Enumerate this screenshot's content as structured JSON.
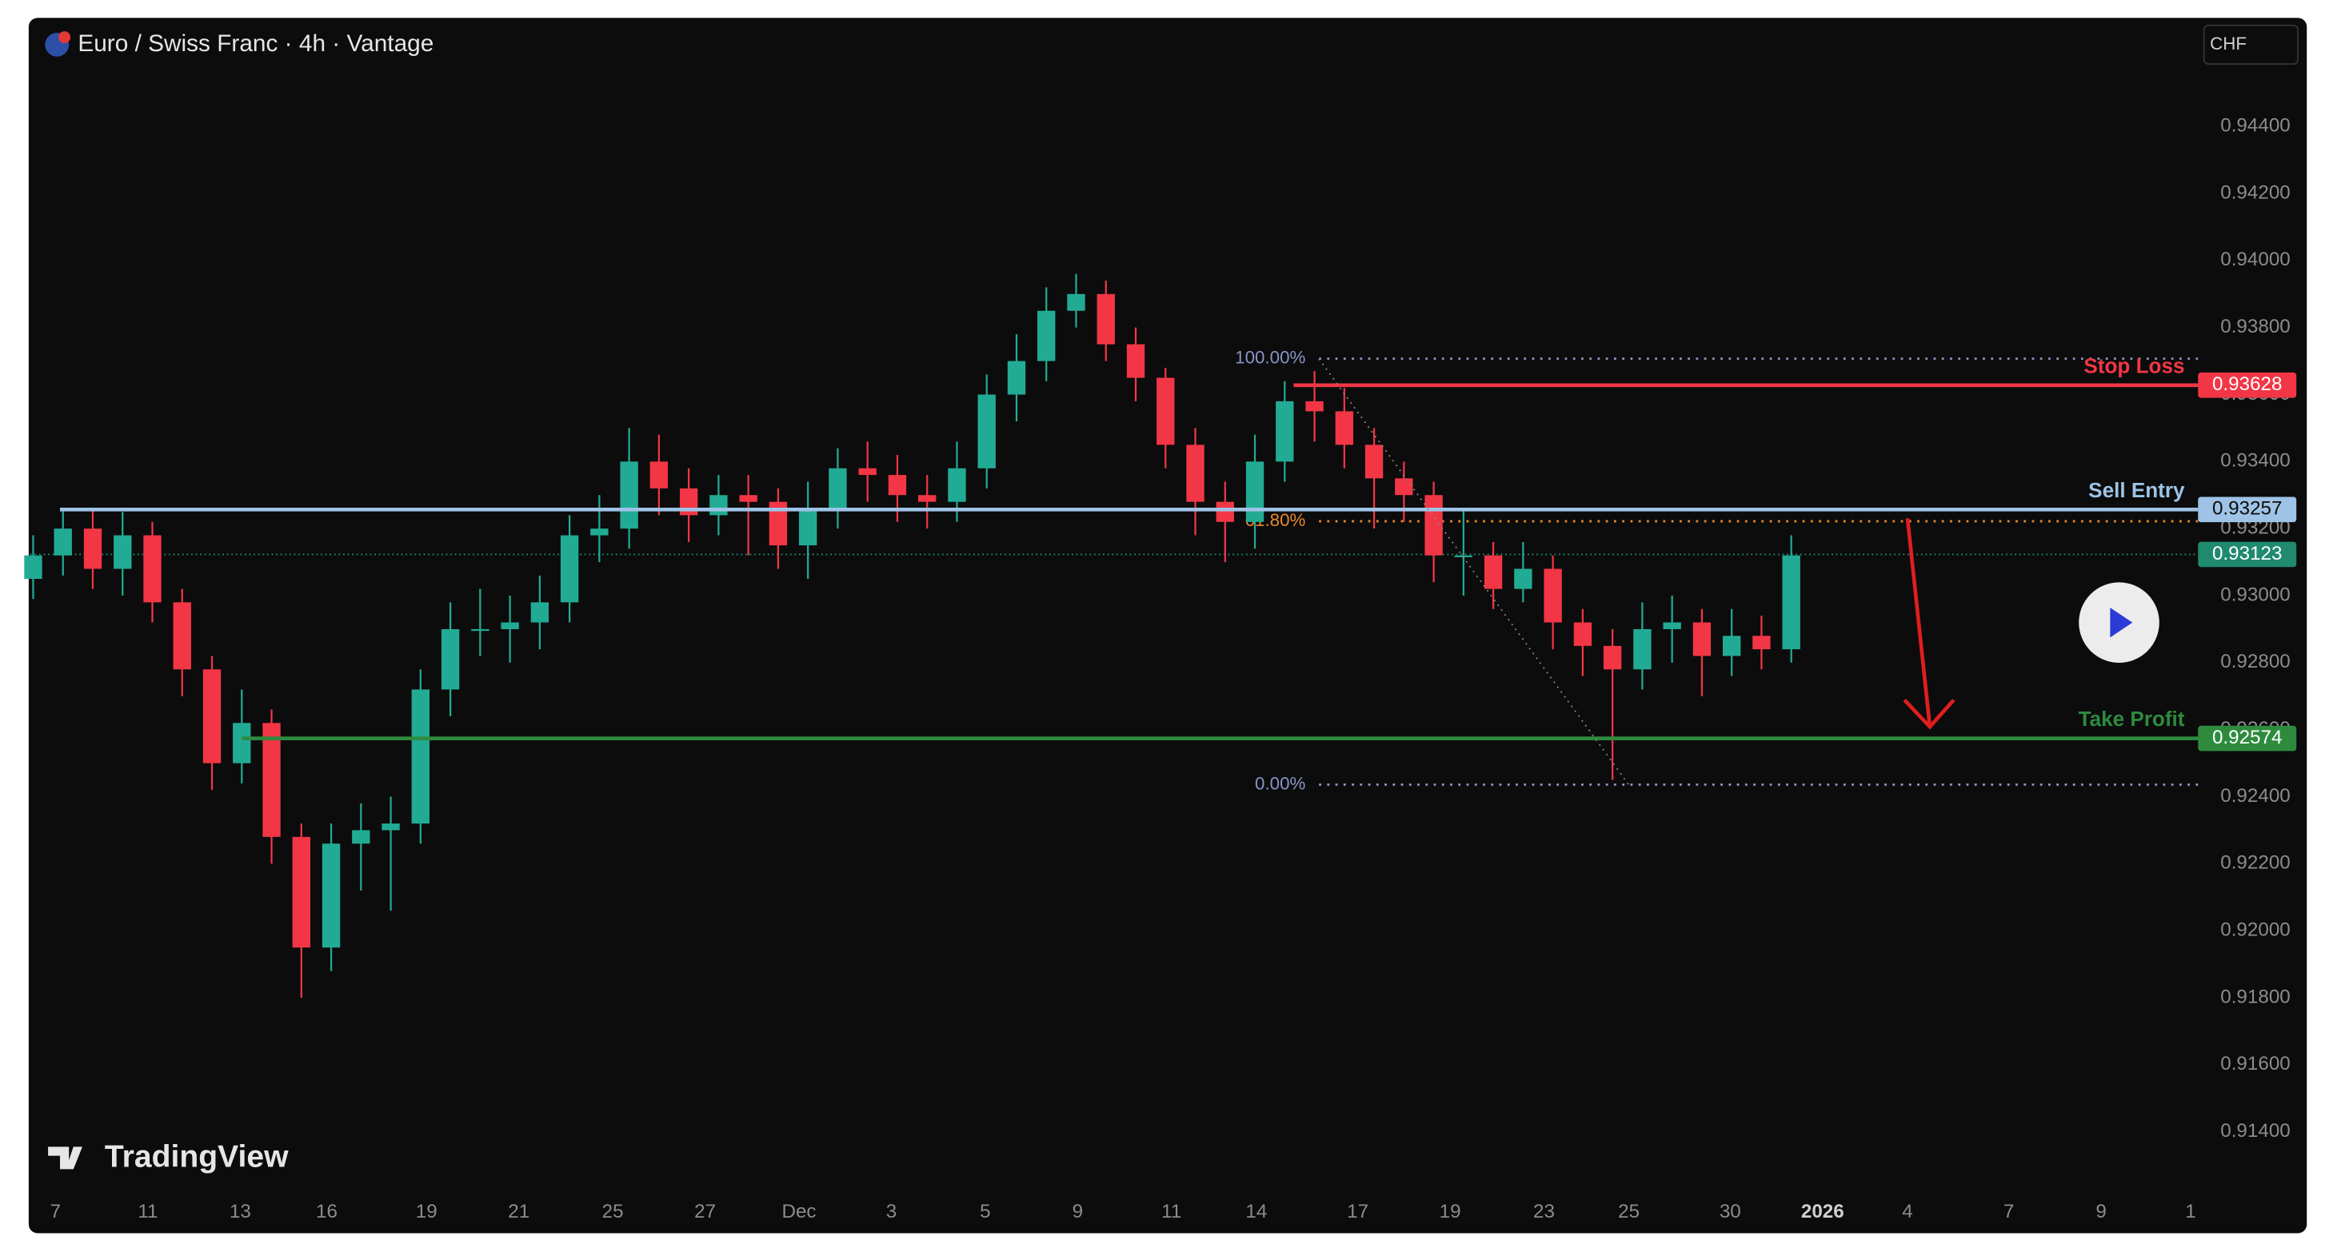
{
  "chart_data": {
    "type": "candlestick",
    "title": "Euro / Swiss Franc · 4h · Vantage",
    "currency": "CHF",
    "brand": "TradingView",
    "up_color": "#22ab94",
    "down_color": "#f23645",
    "open": [
      0.9305,
      0.9312,
      0.932,
      0.9308,
      0.9318,
      0.9298,
      0.9278,
      0.925,
      0.9262,
      0.9228,
      0.9195,
      0.9226,
      0.923,
      0.9232,
      0.9272,
      0.929,
      0.929,
      0.9292,
      0.9298,
      0.9318,
      0.932,
      0.934,
      0.9332,
      0.9324,
      0.933,
      0.9328,
      0.9315,
      0.9326,
      0.9338,
      0.9336,
      0.933,
      0.9328,
      0.9338,
      0.936,
      0.937,
      0.9385,
      0.939,
      0.9375,
      0.9365,
      0.9345,
      0.9328,
      0.9322,
      0.934,
      0.9358,
      0.9355,
      0.9345,
      0.9335,
      0.933,
      0.9312,
      0.9312,
      0.9302,
      0.9308,
      0.9292,
      0.9285,
      0.9278,
      0.929,
      0.9292,
      0.9282,
      0.9288,
      0.9284
    ],
    "high": [
      0.9318,
      0.9326,
      0.9326,
      0.9325,
      0.9322,
      0.9302,
      0.9282,
      0.9272,
      0.9266,
      0.9232,
      0.9232,
      0.9238,
      0.924,
      0.9278,
      0.9298,
      0.9302,
      0.93,
      0.9306,
      0.9324,
      0.933,
      0.935,
      0.9348,
      0.9338,
      0.9336,
      0.9336,
      0.9332,
      0.9334,
      0.9344,
      0.9346,
      0.9342,
      0.9336,
      0.9346,
      0.9366,
      0.9378,
      0.9392,
      0.9396,
      0.9394,
      0.938,
      0.9368,
      0.935,
      0.9334,
      0.9348,
      0.9364,
      0.9367,
      0.9362,
      0.935,
      0.934,
      0.9334,
      0.9326,
      0.9316,
      0.9316,
      0.9312,
      0.9296,
      0.929,
      0.9298,
      0.93,
      0.9296,
      0.9296,
      0.9294,
      0.9318
    ],
    "low": [
      0.9299,
      0.9306,
      0.9302,
      0.93,
      0.9292,
      0.927,
      0.9242,
      0.9244,
      0.922,
      0.918,
      0.9188,
      0.9212,
      0.9206,
      0.9226,
      0.9264,
      0.9282,
      0.928,
      0.9284,
      0.9292,
      0.931,
      0.9314,
      0.9324,
      0.9316,
      0.9318,
      0.9312,
      0.9308,
      0.9305,
      0.932,
      0.9328,
      0.9322,
      0.932,
      0.9322,
      0.9332,
      0.9352,
      0.9364,
      0.938,
      0.937,
      0.9358,
      0.9338,
      0.9318,
      0.931,
      0.9314,
      0.9334,
      0.9346,
      0.9338,
      0.932,
      0.9322,
      0.9304,
      0.93,
      0.9296,
      0.9298,
      0.9284,
      0.9276,
      0.9245,
      0.9272,
      0.928,
      0.927,
      0.9276,
      0.9278,
      0.928
    ],
    "close": [
      0.9312,
      0.932,
      0.9308,
      0.9318,
      0.9298,
      0.9278,
      0.925,
      0.9262,
      0.9228,
      0.9195,
      0.9226,
      0.923,
      0.9232,
      0.9272,
      0.929,
      0.929,
      0.9292,
      0.9298,
      0.9318,
      0.932,
      0.934,
      0.9332,
      0.9324,
      0.933,
      0.9328,
      0.9315,
      0.9326,
      0.9338,
      0.9336,
      0.933,
      0.9328,
      0.9338,
      0.936,
      0.937,
      0.9385,
      0.939,
      0.9375,
      0.9365,
      0.9345,
      0.9328,
      0.9322,
      0.934,
      0.9358,
      0.9355,
      0.9345,
      0.9335,
      0.933,
      0.9312,
      0.9312,
      0.9302,
      0.9308,
      0.9292,
      0.9285,
      0.9278,
      0.929,
      0.9292,
      0.9282,
      0.9288,
      0.9284,
      0.9312
    ],
    "xlim": [
      -0.1,
      72.65
    ],
    "xticks": [
      {
        "value": 0.75,
        "label": "7"
      },
      {
        "value": 3.85,
        "label": "11"
      },
      {
        "value": 6.95,
        "label": "13"
      },
      {
        "value": 9.85,
        "label": "16"
      },
      {
        "value": 13.2,
        "label": "19"
      },
      {
        "value": 16.3,
        "label": "21"
      },
      {
        "value": 19.45,
        "label": "25"
      },
      {
        "value": 22.55,
        "label": "27"
      },
      {
        "value": 25.7,
        "label": "Dec"
      },
      {
        "value": 28.8,
        "label": "3"
      },
      {
        "value": 31.95,
        "label": "5"
      },
      {
        "value": 35.05,
        "label": "9"
      },
      {
        "value": 38.2,
        "label": "11"
      },
      {
        "value": 41.05,
        "label": "14"
      },
      {
        "value": 44.45,
        "label": "17"
      },
      {
        "value": 47.55,
        "label": "19"
      },
      {
        "value": 50.7,
        "label": "23"
      },
      {
        "value": 53.55,
        "label": "25"
      },
      {
        "value": 56.95,
        "label": "30"
      },
      {
        "value": 60.05,
        "label": "2026"
      },
      {
        "value": 62.9,
        "label": "4"
      },
      {
        "value": 66.3,
        "label": "7"
      },
      {
        "value": 69.4,
        "label": "9"
      },
      {
        "value": 72.4,
        "label": "1"
      }
    ],
    "ylim": [
      0.91222,
      0.94724
    ],
    "yticks": [
      {
        "value": 0.914,
        "label": "0.91400"
      },
      {
        "value": 0.916,
        "label": "0.91600"
      },
      {
        "value": 0.918,
        "label": "0.91800"
      },
      {
        "value": 0.92,
        "label": "0.92000"
      },
      {
        "value": 0.922,
        "label": "0.92200"
      },
      {
        "value": 0.924,
        "label": "0.92400"
      },
      {
        "value": 0.926,
        "label": "0.92600"
      },
      {
        "value": 0.928,
        "label": "0.92800"
      },
      {
        "value": 0.93,
        "label": "0.93000"
      },
      {
        "value": 0.932,
        "label": "0.93200"
      },
      {
        "value": 0.934,
        "label": "0.93400"
      },
      {
        "value": 0.936,
        "label": "0.93600"
      },
      {
        "value": 0.938,
        "label": "0.93800"
      },
      {
        "value": 0.94,
        "label": "0.94000"
      },
      {
        "value": 0.942,
        "label": "0.94200"
      },
      {
        "value": 0.944,
        "label": "0.94400"
      }
    ],
    "grid": false,
    "current_price": 0.93123,
    "current_color": "#1f8a6e",
    "levels": [
      {
        "name": "Stop Loss",
        "value": 0.93628,
        "color": "#f23645",
        "x_start": 42.3
      },
      {
        "name": "Sell Entry",
        "value": 0.93257,
        "color": "#9ec3e6",
        "x_start": 0.9
      },
      {
        "name": "Take Profit",
        "value": 0.92574,
        "color": "#2e8b3e",
        "x_start": 7
      }
    ],
    "fib": {
      "x_start": 43.15,
      "levels": [
        {
          "value": 100,
          "label": "100.00%",
          "price": 0.93707,
          "color": "#8a93c8"
        },
        {
          "value": 61.8,
          "label": "61.80%",
          "price": 0.93222,
          "color": "#e8872b"
        },
        {
          "value": 0,
          "label": "0.00%",
          "price": 0.92436,
          "color": "#8a93c8"
        }
      ]
    }
  }
}
